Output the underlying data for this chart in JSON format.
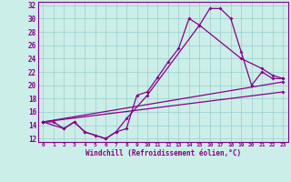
{
  "xlabel": "Windchill (Refroidissement éolien,°C)",
  "bg_color": "#cceee8",
  "line_color": "#880088",
  "grid_color": "#99cccc",
  "xlim": [
    -0.5,
    23.5
  ],
  "ylim": [
    11.5,
    32.5
  ],
  "xticks": [
    0,
    1,
    2,
    3,
    4,
    5,
    6,
    7,
    8,
    9,
    10,
    11,
    12,
    13,
    14,
    15,
    16,
    17,
    18,
    19,
    20,
    21,
    22,
    23
  ],
  "yticks": [
    12,
    14,
    16,
    18,
    20,
    22,
    24,
    26,
    28,
    30,
    32
  ],
  "lines": [
    {
      "x": [
        0,
        1,
        2,
        3,
        4,
        5,
        6,
        7,
        8,
        9,
        10,
        11,
        12,
        13,
        14,
        15,
        16,
        17,
        18,
        19,
        20,
        21,
        22,
        23
      ],
      "y": [
        14.5,
        14.5,
        13.5,
        14.5,
        13.0,
        12.5,
        12.0,
        13.0,
        13.5,
        18.5,
        19.0,
        21.2,
        23.5,
        25.5,
        30.0,
        29.0,
        31.5,
        31.5,
        30.0,
        25.0,
        20.0,
        22.0,
        21.0,
        21.0
      ]
    },
    {
      "x": [
        0,
        2,
        3,
        4,
        5,
        6,
        7,
        8,
        10,
        15,
        19,
        21,
        22,
        23
      ],
      "y": [
        14.5,
        13.5,
        14.5,
        13.0,
        12.5,
        12.0,
        13.0,
        15.0,
        18.5,
        29.0,
        24.0,
        22.5,
        21.5,
        21.0
      ]
    },
    {
      "x": [
        0,
        23
      ],
      "y": [
        14.5,
        20.5
      ]
    },
    {
      "x": [
        0,
        23
      ],
      "y": [
        14.5,
        19.0
      ]
    }
  ]
}
